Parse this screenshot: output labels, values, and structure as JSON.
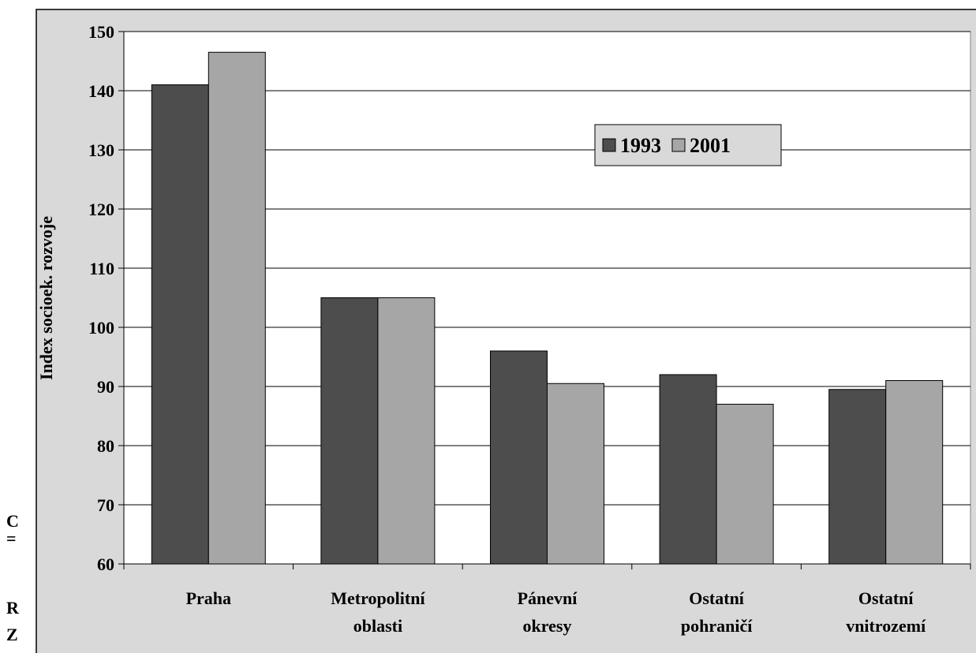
{
  "fragments": [
    "C",
    "=",
    "R",
    "Z"
  ],
  "chart_data": {
    "type": "bar",
    "y_label": "Index socioek. rozvoje",
    "categories": [
      [
        "Praha"
      ],
      [
        "Metropolitní",
        "oblasti"
      ],
      [
        "Pánevní",
        "okresy"
      ],
      [
        "Ostatní",
        "pohraničí"
      ],
      [
        "Ostatní",
        "vnitrozemí"
      ]
    ],
    "series": [
      {
        "name": "1993",
        "color": "#4d4d4d",
        "values": [
          141,
          105,
          96,
          92,
          89.5
        ]
      },
      {
        "name": "2001",
        "color": "#a6a6a6",
        "values": [
          146.5,
          105,
          90.5,
          87,
          91
        ]
      }
    ],
    "ylim": [
      60,
      150
    ],
    "yticks": [
      60,
      70,
      80,
      90,
      100,
      110,
      120,
      130,
      140,
      150
    ],
    "grid": true,
    "legend": "top-right"
  }
}
